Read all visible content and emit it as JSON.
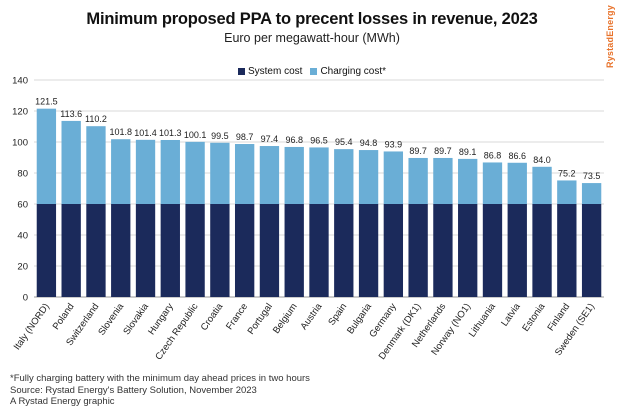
{
  "header": {
    "title": "Minimum proposed PPA to precent losses in revenue, 2023",
    "subtitle": "Euro per megawatt-hour (MWh)",
    "brand": "RystadEnergy"
  },
  "colors": {
    "system_cost": "#1b2a5b",
    "charging_cost": "#6aaed6",
    "grid": "#d9d9d9",
    "brand": "#e8722a"
  },
  "chart_data": {
    "type": "bar",
    "stacked": true,
    "categories": [
      "Italy (NORD)",
      "Poland",
      "Switzerland",
      "Slovenia",
      "Slovakia",
      "Hungary",
      "Czech Republic",
      "Croatia",
      "France",
      "Portugal",
      "Belgium",
      "Austria",
      "Spain",
      "Bulgaria",
      "Germany",
      "Denmark (DK1)",
      "Netherlands",
      "Norway (NO1)",
      "Lithuania",
      "Latvia",
      "Estonia",
      "Finland",
      "Sweden (SE1)"
    ],
    "series": [
      {
        "name": "System cost",
        "values": [
          60,
          60,
          60,
          60,
          60,
          60,
          60,
          60,
          60,
          60,
          60,
          60,
          60,
          60,
          60,
          60,
          60,
          60,
          60,
          60,
          60,
          60,
          60
        ]
      },
      {
        "name": "Charging cost*",
        "values": [
          61.5,
          53.6,
          50.2,
          41.8,
          41.4,
          41.3,
          40.1,
          39.5,
          38.7,
          37.4,
          36.8,
          36.5,
          35.4,
          34.8,
          33.9,
          29.7,
          29.7,
          29.1,
          26.8,
          26.6,
          24.0,
          15.2,
          13.5
        ]
      }
    ],
    "totals": [
      121.5,
      113.6,
      110.2,
      101.8,
      101.4,
      101.3,
      100.1,
      99.5,
      98.7,
      97.4,
      96.8,
      96.5,
      95.4,
      94.8,
      93.9,
      89.7,
      89.7,
      89.1,
      86.8,
      86.6,
      84.0,
      75.2,
      73.5
    ],
    "total_labels": [
      "121.5",
      "113.6",
      "110.2",
      "101.8",
      "101.4",
      "101.3",
      "100.1",
      "99.5",
      "98.7",
      "97.4",
      "96.8",
      "96.5",
      "95.4",
      "94.8",
      "93.9",
      "89.7",
      "89.7",
      "89.1",
      "86.8",
      "86.6",
      "84.0",
      "75.2",
      "73.5"
    ],
    "y_ticks": [
      "0",
      "20",
      "40",
      "60",
      "80",
      "100",
      "120",
      "140"
    ],
    "ylim": [
      0,
      140
    ],
    "grid": true,
    "legend_position": "top-center"
  },
  "footnotes": [
    "*Fully charging battery with the minimum day ahead prices in two hours",
    "Source: Rystad Energy's Battery Solution, November 2023",
    "A Rystad Energy graphic"
  ]
}
